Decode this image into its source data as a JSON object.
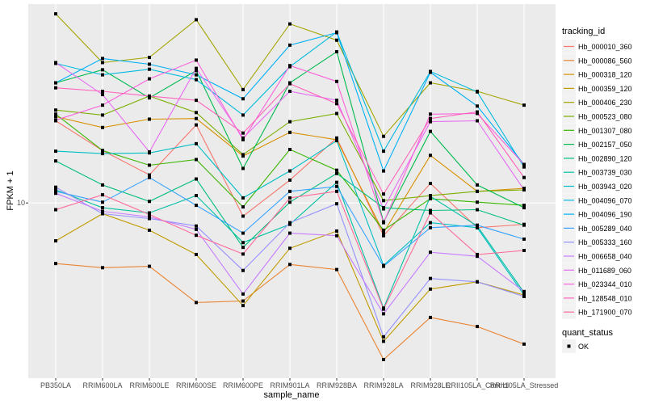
{
  "chart_data": {
    "type": "line",
    "title": "",
    "xlabel": "sample_name",
    "ylabel": "FPKM + 1",
    "yscale": "log10",
    "ylim": [
      6.4,
      16.6
    ],
    "yticks": [
      10
    ],
    "ytick_labels": [
      "10"
    ],
    "grid": true,
    "categories": [
      "PB350LA",
      "RRIM600LA",
      "RRIM600LE",
      "RRIM600SE",
      "RRIM600PE",
      "RRIM901LA",
      "RRIM928BA",
      "RRIM928LA",
      "RRIM928LE",
      "RRII105LA_Control",
      "RRII105LA_Stressed"
    ],
    "legend": {
      "position": "right",
      "color_title": "tracking_id",
      "shape_title": "quant_status",
      "shape_entries": [
        "OK"
      ]
    },
    "series": [
      {
        "name": "Hb_000010_360",
        "color": "#F8766D",
        "values": [
          12.33,
          11.43,
          10.74,
          12.2,
          9.67,
          10.6,
          11.8,
          9.2,
          10.51,
          9.39,
          9.47
        ]
      },
      {
        "name": "Hb_000086_560",
        "color": "#EA8331",
        "values": [
          8.57,
          8.48,
          8.51,
          7.76,
          7.79,
          8.55,
          8.44,
          6.71,
          7.47,
          7.3,
          6.98
        ]
      },
      {
        "name": "Hb_000318_120",
        "color": "#D89000",
        "values": [
          12.46,
          12.12,
          12.38,
          12.4,
          11.27,
          11.97,
          11.75,
          9.27,
          11.29,
          10.3,
          10.38
        ]
      },
      {
        "name": "Hb_000359_120",
        "color": "#C09B00",
        "values": [
          9.08,
          9.73,
          9.33,
          8.77,
          7.7,
          8.91,
          9.31,
          7.03,
          8.03,
          8.18,
          7.91
        ]
      },
      {
        "name": "Hb_000406_230",
        "color": "#A3A500",
        "values": [
          16.19,
          14.3,
          14.49,
          15.95,
          13.35,
          15.78,
          15.14,
          11.85,
          13.58,
          13.29,
          12.83
        ]
      },
      {
        "name": "Hb_000523_080",
        "color": "#7CAE00",
        "values": [
          12.67,
          12.51,
          13.13,
          12.59,
          11.31,
          12.3,
          12.56,
          10.06,
          10.19,
          10.3,
          10.34
        ]
      },
      {
        "name": "Hb_001307_080",
        "color": "#39B600",
        "values": [
          12.54,
          11.43,
          11.01,
          11.17,
          9.9,
          11.46,
          10.87,
          9.33,
          10.11,
          10.02,
          9.94
        ]
      },
      {
        "name": "Hb_002157_050",
        "color": "#00BB4E",
        "values": [
          13.58,
          14.04,
          13.07,
          14.01,
          10.92,
          13.58,
          14.7,
          9.53,
          12.0,
          10.47,
          9.88
        ]
      },
      {
        "name": "Hb_002890_120",
        "color": "#00BF7D",
        "values": [
          11.13,
          10.47,
          10.04,
          10.63,
          8.93,
          10.02,
          10.78,
          9.88,
          9.81,
          9.83,
          9.45
        ]
      },
      {
        "name": "Hb_003739_030",
        "color": "#00C1A3",
        "values": [
          10.34,
          9.88,
          9.75,
          10.19,
          9.04,
          9.47,
          10.54,
          7.65,
          10.17,
          9.43,
          7.96
        ]
      },
      {
        "name": "Hb_003943_020",
        "color": "#00BFC4",
        "values": [
          11.41,
          11.34,
          11.36,
          11.63,
          10.13,
          10.85,
          11.72,
          8.53,
          9.51,
          9.39,
          7.91
        ]
      },
      {
        "name": "Hb_004096_070",
        "color": "#00BADE",
        "values": [
          14.27,
          13.86,
          14.06,
          13.69,
          12.51,
          14.15,
          15.46,
          11.41,
          13.98,
          13.27,
          10.96
        ]
      },
      {
        "name": "Hb_004096_190",
        "color": "#00B0F6",
        "values": [
          13.58,
          14.45,
          14.24,
          13.86,
          13.04,
          14.95,
          15.43,
          10.85,
          13.95,
          12.8,
          11.03
        ]
      },
      {
        "name": "Hb_005289_040",
        "color": "#35A2FF",
        "values": [
          10.3,
          10.02,
          10.67,
          9.94,
          9.26,
          10.3,
          10.43,
          8.51,
          9.39,
          9.45,
          9.12
        ]
      },
      {
        "name": "Hb_005333_160",
        "color": "#9590FF",
        "values": [
          10.41,
          9.73,
          9.61,
          9.43,
          8.42,
          9.51,
          9.98,
          7.11,
          8.25,
          8.18,
          7.88
        ]
      },
      {
        "name": "Hb_006658_040",
        "color": "#C77CFF",
        "values": [
          10.25,
          9.79,
          9.65,
          9.35,
          7.93,
          9.26,
          9.2,
          7.54,
          8.82,
          8.73,
          7.98
        ]
      },
      {
        "name": "Hb_011689_060",
        "color": "#E76BF3",
        "values": [
          14.3,
          13.18,
          11.39,
          14.09,
          11.8,
          13.29,
          12.99,
          9.85,
          12.3,
          12.33,
          10.34
        ]
      },
      {
        "name": "Hb_023344_010",
        "color": "#FA62DB",
        "values": [
          12.35,
          12.83,
          13.72,
          14.39,
          11.75,
          14.19,
          13.63,
          9.51,
          12.54,
          12.56,
          11.03
        ]
      },
      {
        "name": "Hb_128548_010",
        "color": "#FF62BC",
        "values": [
          13.41,
          13.29,
          13.13,
          12.99,
          11.95,
          13.55,
          12.88,
          10.23,
          12.4,
          12.61,
          10.67
        ]
      },
      {
        "name": "Hb_171900_070",
        "color": "#FF6A98",
        "values": [
          9.83,
          10.21,
          9.71,
          9.21,
          8.78,
          10.13,
          10.3,
          7.63,
          9.75,
          8.77,
          8.86
        ]
      }
    ]
  },
  "colors": {
    "panel_background": "#EBEBEB",
    "grid": "#FFFFFF",
    "point": "#000000"
  }
}
